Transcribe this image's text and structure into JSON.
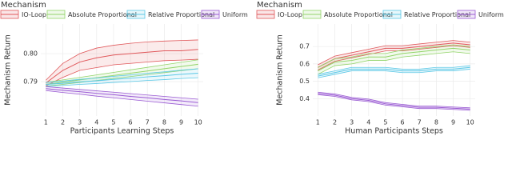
{
  "chart_data": [
    {
      "type": "line",
      "legend_title": "Mechanism",
      "xlabel": "Participants Learning Steps",
      "ylabel": "Mechanism Return",
      "x": [
        1,
        2,
        3,
        4,
        5,
        6,
        7,
        8,
        9,
        10
      ],
      "xlim": [
        0.7,
        10.3
      ],
      "xticks": [
        1,
        2,
        3,
        4,
        5,
        6,
        7,
        8,
        9,
        10
      ],
      "ylim": [
        0.7777,
        0.8106
      ],
      "yticks": [
        0.79,
        {
          "value": 0.8,
          "label": "0.80"
        }
      ],
      "grid": true,
      "legend": "top",
      "series": [
        {
          "name": "IO-Loop",
          "color": "#e0585b",
          "values": [
            0.7895,
            0.794,
            0.797,
            0.7985,
            0.7995,
            0.8,
            0.8005,
            0.801,
            0.801,
            0.8015
          ],
          "upper": [
            0.7905,
            0.7965,
            0.8,
            0.802,
            0.803,
            0.8037,
            0.8042,
            0.8045,
            0.8047,
            0.8049
          ],
          "lower": [
            0.7885,
            0.7915,
            0.794,
            0.795,
            0.796,
            0.7965,
            0.797,
            0.7975,
            0.7977,
            0.798
          ]
        },
        {
          "name": "Absolute Proportional",
          "color": "#93d46a",
          "values": [
            0.789,
            0.7898,
            0.7906,
            0.7914,
            0.7922,
            0.793,
            0.7938,
            0.7946,
            0.7954,
            0.7962
          ],
          "upper": [
            0.7897,
            0.7906,
            0.7915,
            0.7924,
            0.7933,
            0.7942,
            0.7951,
            0.796,
            0.7969,
            0.7978
          ],
          "lower": [
            0.7883,
            0.789,
            0.7897,
            0.7904,
            0.7911,
            0.7918,
            0.7925,
            0.7932,
            0.7939,
            0.7946
          ]
        },
        {
          "name": "Relative Proportional",
          "color": "#5cc8e6",
          "values": [
            0.789,
            0.7894,
            0.7899,
            0.7903,
            0.7908,
            0.7912,
            0.7917,
            0.7921,
            0.7926,
            0.793
          ],
          "upper": [
            0.7897,
            0.7902,
            0.7908,
            0.7913,
            0.7919,
            0.7924,
            0.793,
            0.7935,
            0.7941,
            0.7946
          ],
          "lower": [
            0.7883,
            0.7886,
            0.789,
            0.7893,
            0.7897,
            0.79,
            0.7904,
            0.7907,
            0.7911,
            0.7914
          ]
        },
        {
          "name": "Uniform",
          "color": "#9a5bd3",
          "values": [
            0.7875,
            0.7869,
            0.7864,
            0.7858,
            0.7853,
            0.7847,
            0.7842,
            0.7836,
            0.7831,
            0.7825
          ],
          "upper": [
            0.7882,
            0.7877,
            0.7872,
            0.7867,
            0.7862,
            0.7857,
            0.7852,
            0.7847,
            0.7842,
            0.7837
          ],
          "lower": [
            0.7868,
            0.7861,
            0.7855,
            0.7848,
            0.7842,
            0.7836,
            0.783,
            0.7824,
            0.7818,
            0.7812
          ]
        }
      ]
    },
    {
      "type": "line",
      "legend_title": "Mechanism",
      "xlabel": "Human Participants Steps",
      "ylabel": "Mechanism Return",
      "x": [
        1,
        2,
        3,
        4,
        5,
        6,
        7,
        8,
        9,
        10
      ],
      "xlim": [
        0.7,
        10.3
      ],
      "xticks": [
        1,
        2,
        3,
        4,
        5,
        6,
        7,
        8,
        9,
        10
      ],
      "ylim": [
        0.3,
        0.83
      ],
      "yticks": [
        0.4,
        0.5,
        0.6,
        0.7
      ],
      "grid": true,
      "legend": "top",
      "series": [
        {
          "name": "IO-Loop",
          "color": "#e0585b",
          "values": [
            0.58,
            0.63,
            0.65,
            0.67,
            0.69,
            0.69,
            0.7,
            0.71,
            0.72,
            0.71
          ],
          "upper": [
            0.595,
            0.645,
            0.665,
            0.685,
            0.705,
            0.705,
            0.715,
            0.725,
            0.735,
            0.725
          ],
          "lower": [
            0.565,
            0.615,
            0.635,
            0.655,
            0.675,
            0.675,
            0.685,
            0.695,
            0.705,
            0.695
          ]
        },
        {
          "name": "Absolute Proportional",
          "color": "#93d46a",
          "values": [
            0.56,
            0.61,
            0.62,
            0.64,
            0.64,
            0.66,
            0.67,
            0.68,
            0.69,
            0.68
          ],
          "upper": [
            0.58,
            0.63,
            0.64,
            0.66,
            0.66,
            0.68,
            0.69,
            0.7,
            0.71,
            0.7
          ],
          "lower": [
            0.54,
            0.59,
            0.6,
            0.62,
            0.62,
            0.64,
            0.65,
            0.66,
            0.67,
            0.66
          ]
        },
        {
          "name": "Relative Proportional",
          "color": "#5cc8e6",
          "values": [
            0.53,
            0.55,
            0.57,
            0.57,
            0.57,
            0.56,
            0.56,
            0.57,
            0.57,
            0.58
          ],
          "upper": [
            0.54,
            0.56,
            0.58,
            0.58,
            0.58,
            0.57,
            0.57,
            0.58,
            0.58,
            0.59
          ],
          "lower": [
            0.52,
            0.54,
            0.56,
            0.56,
            0.56,
            0.55,
            0.55,
            0.56,
            0.56,
            0.57
          ]
        },
        {
          "name": "Uniform",
          "color": "#9a5bd3",
          "values": [
            0.43,
            0.42,
            0.4,
            0.39,
            0.37,
            0.36,
            0.35,
            0.35,
            0.345,
            0.34
          ],
          "upper": [
            0.437,
            0.427,
            0.407,
            0.397,
            0.377,
            0.367,
            0.357,
            0.357,
            0.352,
            0.347
          ],
          "lower": [
            0.423,
            0.413,
            0.393,
            0.383,
            0.363,
            0.353,
            0.343,
            0.343,
            0.338,
            0.333
          ]
        }
      ]
    }
  ]
}
